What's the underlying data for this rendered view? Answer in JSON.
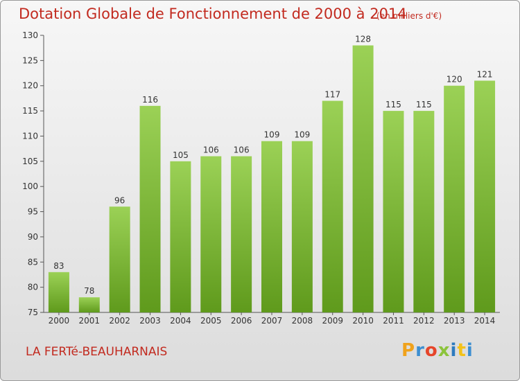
{
  "header": {
    "title": "Dotation Globale de Fonctionnement de 2000 à 2014",
    "unit": "(en milliers d'€)"
  },
  "footer": {
    "commune": "LA FERTé-BEAUHARNAIS",
    "logo_letters": [
      "P",
      "r",
      "o",
      "x",
      "i",
      "t",
      "i"
    ]
  },
  "chart_data": {
    "type": "bar",
    "title": "Dotation Globale de Fonctionnement de 2000 à 2014",
    "xlabel": "",
    "ylabel": "",
    "categories": [
      "2000",
      "2001",
      "2002",
      "2003",
      "2004",
      "2005",
      "2006",
      "2007",
      "2008",
      "2009",
      "2010",
      "2011",
      "2012",
      "2013",
      "2014"
    ],
    "values": [
      83,
      78,
      96,
      116,
      105,
      106,
      106,
      109,
      109,
      117,
      128,
      115,
      115,
      120,
      121
    ],
    "ylim": [
      75,
      130
    ],
    "yticks": [
      75,
      80,
      85,
      90,
      95,
      100,
      105,
      110,
      115,
      120,
      125,
      130
    ],
    "grid": false,
    "colors": {
      "bar_light": "#9bd156",
      "bar_dark": "#5f9a1c"
    }
  }
}
